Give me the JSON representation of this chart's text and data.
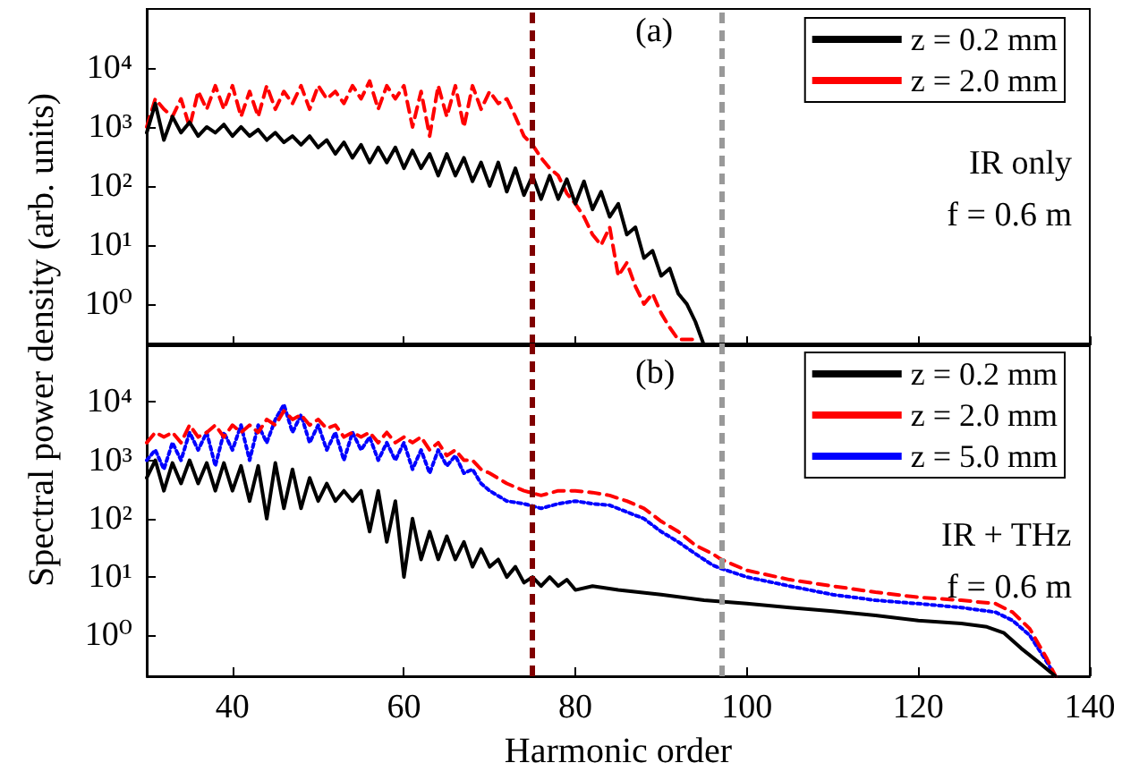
{
  "chart_data": [
    {
      "type": "line",
      "ylabel": "Spectral power density (arb. units)",
      "annotations": [
        "(a)",
        "IR only",
        "f = 0.6 m"
      ],
      "log": "y",
      "grid": false,
      "legend": "top right",
      "marker": "none",
      "tick_labels": "y",
      "xlim": [
        30,
        140
      ],
      "xticks": [
        40,
        60,
        80,
        100,
        120,
        140
      ],
      "ylim": [
        0.2,
        100000
      ],
      "yticks": [
        {
          "value": 1,
          "label": "10⁰"
        },
        {
          "value": 10,
          "label": "10¹"
        },
        {
          "value": 100,
          "label": "10²"
        },
        {
          "value": 1000,
          "label": "10³"
        },
        {
          "value": 10000,
          "label": "10⁴"
        }
      ],
      "ref_lines": [
        {
          "axis": "x",
          "value": 75,
          "color": "#800000",
          "line_style": "dashed"
        },
        {
          "axis": "x",
          "value": 97,
          "color": "#999999",
          "line_style": "dashed"
        }
      ],
      "series": [
        {
          "name": "z = 0.2 mm",
          "color": "#000000",
          "line_style": "solid",
          "x": [
            30,
            31,
            32,
            33,
            34,
            35,
            36,
            37,
            38,
            39,
            40,
            41,
            42,
            43,
            44,
            45,
            46,
            47,
            48,
            49,
            50,
            51,
            52,
            53,
            54,
            55,
            56,
            57,
            58,
            59,
            60,
            61,
            62,
            63,
            64,
            65,
            66,
            67,
            68,
            69,
            70,
            71,
            72,
            73,
            74,
            75,
            76,
            77,
            78,
            79,
            80,
            81,
            82,
            83,
            84,
            85,
            86,
            87,
            88,
            89,
            90,
            91,
            92,
            93,
            94,
            95
          ],
          "values": [
            800,
            2500,
            600,
            1500,
            800,
            1200,
            700,
            1000,
            800,
            1100,
            700,
            1000,
            700,
            900,
            600,
            800,
            550,
            700,
            500,
            700,
            450,
            600,
            350,
            550,
            300,
            500,
            250,
            450,
            250,
            450,
            200,
            400,
            200,
            350,
            150,
            350,
            150,
            300,
            120,
            250,
            100,
            250,
            80,
            200,
            70,
            150,
            60,
            150,
            60,
            130,
            50,
            120,
            40,
            80,
            30,
            50,
            15,
            20,
            6,
            8,
            3,
            4,
            1.5,
            1,
            0.5,
            0.2
          ]
        },
        {
          "name": "z = 2.0 mm",
          "color": "#ff0000",
          "line_style": "dashed",
          "x": [
            30,
            31,
            32,
            33,
            34,
            35,
            36,
            37,
            38,
            39,
            40,
            41,
            42,
            43,
            44,
            45,
            46,
            47,
            48,
            49,
            50,
            51,
            52,
            53,
            54,
            55,
            56,
            57,
            58,
            59,
            60,
            61,
            62,
            63,
            64,
            65,
            66,
            67,
            68,
            69,
            70,
            71,
            72,
            73,
            74,
            75,
            76,
            77,
            78,
            79,
            80,
            81,
            82,
            83,
            84,
            85,
            86,
            87,
            88,
            89,
            90,
            91,
            92,
            93,
            94
          ],
          "values": [
            1000,
            3000,
            2000,
            1500,
            3000,
            1000,
            4000,
            2000,
            5000,
            2000,
            5000,
            1500,
            4000,
            1500,
            5000,
            2000,
            4000,
            2500,
            5000,
            2000,
            5000,
            3000,
            4000,
            2500,
            5000,
            3000,
            6000,
            2000,
            5000,
            3000,
            5000,
            1000,
            4000,
            700,
            5000,
            1500,
            5000,
            1000,
            5000,
            2000,
            4000,
            2500,
            3000,
            1500,
            700,
            500,
            300,
            200,
            150,
            75,
            50,
            30,
            15,
            10,
            20,
            3,
            5,
            2,
            1,
            1.5,
            0.7,
            0.4,
            0.25,
            0.25,
            0.25
          ]
        }
      ]
    },
    {
      "type": "line",
      "xlabel": "Harmonic order",
      "annotations": [
        "(b)",
        "IR + THz",
        "f = 0.6 m"
      ],
      "log": "y",
      "grid": false,
      "legend": "top right",
      "marker": "none",
      "xlim": [
        30,
        140
      ],
      "xticks": [
        40,
        60,
        80,
        100,
        120,
        140
      ],
      "ylim": [
        0.2,
        100000
      ],
      "yticks": [
        {
          "value": 1,
          "label": "10⁰"
        },
        {
          "value": 10,
          "label": "10¹"
        },
        {
          "value": 100,
          "label": "10²"
        },
        {
          "value": 1000,
          "label": "10³"
        },
        {
          "value": 10000,
          "label": "10⁴"
        }
      ],
      "ref_lines": [
        {
          "axis": "x",
          "value": 75,
          "color": "#800000",
          "line_style": "dashed"
        },
        {
          "axis": "x",
          "value": 97,
          "color": "#999999",
          "line_style": "dashed"
        }
      ],
      "series": [
        {
          "name": "z = 0.2 mm",
          "color": "#000000",
          "line_style": "solid",
          "x": [
            30,
            31,
            32,
            33,
            34,
            35,
            36,
            37,
            38,
            39,
            40,
            41,
            42,
            43,
            44,
            45,
            46,
            47,
            48,
            49,
            50,
            51,
            52,
            53,
            54,
            55,
            56,
            57,
            58,
            59,
            60,
            61,
            62,
            63,
            64,
            65,
            66,
            67,
            68,
            69,
            70,
            71,
            72,
            73,
            74,
            75,
            76,
            77,
            78,
            79,
            80,
            82,
            85,
            90,
            95,
            100,
            105,
            110,
            115,
            120,
            125,
            128,
            130,
            132,
            134,
            136
          ],
          "values": [
            500,
            1000,
            300,
            900,
            400,
            1000,
            400,
            900,
            300,
            900,
            300,
            800,
            200,
            800,
            100,
            900,
            150,
            700,
            150,
            500,
            200,
            400,
            200,
            300,
            200,
            300,
            60,
            300,
            40,
            200,
            10,
            100,
            20,
            60,
            20,
            50,
            20,
            40,
            15,
            30,
            15,
            20,
            10,
            15,
            8,
            10,
            7,
            10,
            7,
            9,
            6,
            7,
            6,
            5,
            4,
            3.5,
            3,
            2.6,
            2.2,
            1.8,
            1.6,
            1.4,
            1.1,
            0.6,
            0.35,
            0.2
          ]
        },
        {
          "name": "z = 2.0 mm",
          "color": "#ff0000",
          "line_style": "dashed",
          "x": [
            30,
            31,
            32,
            33,
            34,
            35,
            36,
            37,
            38,
            39,
            40,
            41,
            42,
            43,
            44,
            45,
            46,
            47,
            48,
            49,
            50,
            51,
            52,
            53,
            54,
            55,
            56,
            57,
            58,
            59,
            60,
            61,
            62,
            63,
            64,
            65,
            66,
            67,
            68,
            69,
            70,
            72,
            74,
            76,
            78,
            80,
            82,
            84,
            86,
            88,
            90,
            92,
            94,
            96,
            97,
            100,
            105,
            110,
            115,
            120,
            125,
            129,
            131,
            133,
            135,
            136
          ],
          "values": [
            2000,
            3000,
            2500,
            3000,
            2000,
            4000,
            2500,
            3000,
            4000,
            2500,
            4000,
            3000,
            4000,
            3000,
            5000,
            4000,
            7000,
            5000,
            6000,
            4000,
            5000,
            3500,
            4000,
            2500,
            3000,
            2500,
            3000,
            2000,
            3000,
            2000,
            2500,
            2000,
            2500,
            1500,
            2000,
            1200,
            1500,
            1000,
            1000,
            700,
            600,
            400,
            300,
            250,
            300,
            300,
            280,
            250,
            200,
            150,
            90,
            60,
            35,
            25,
            20,
            13,
            9,
            7,
            5.5,
            4.5,
            4,
            3.5,
            2.5,
            1.3,
            0.4,
            0.2
          ]
        },
        {
          "name": "z = 5.0 mm",
          "color": "#0000ff",
          "line_style": "dotted",
          "x": [
            30,
            31,
            32,
            33,
            34,
            35,
            36,
            37,
            38,
            39,
            40,
            41,
            42,
            43,
            44,
            45,
            46,
            47,
            48,
            49,
            50,
            51,
            52,
            53,
            54,
            55,
            56,
            57,
            58,
            59,
            60,
            61,
            62,
            63,
            64,
            65,
            66,
            67,
            68,
            69,
            70,
            72,
            74,
            76,
            78,
            80,
            82,
            84,
            86,
            88,
            90,
            92,
            94,
            96,
            97,
            100,
            105,
            110,
            115,
            120,
            125,
            129,
            131,
            133,
            135,
            136
          ],
          "values": [
            1000,
            1500,
            700,
            2000,
            1000,
            3000,
            1500,
            3000,
            800,
            3000,
            1500,
            4000,
            1000,
            4000,
            2000,
            5000,
            9000,
            3000,
            6000,
            2000,
            4000,
            1500,
            3000,
            1000,
            3000,
            1500,
            2500,
            1000,
            2000,
            1000,
            2000,
            700,
            1500,
            600,
            1500,
            800,
            1200,
            600,
            700,
            400,
            300,
            200,
            180,
            150,
            180,
            200,
            180,
            170,
            130,
            100,
            60,
            40,
            25,
            16,
            14,
            10,
            7,
            5,
            4,
            3.5,
            3,
            2.5,
            1.8,
            1,
            0.35,
            0.2
          ]
        }
      ]
    }
  ]
}
